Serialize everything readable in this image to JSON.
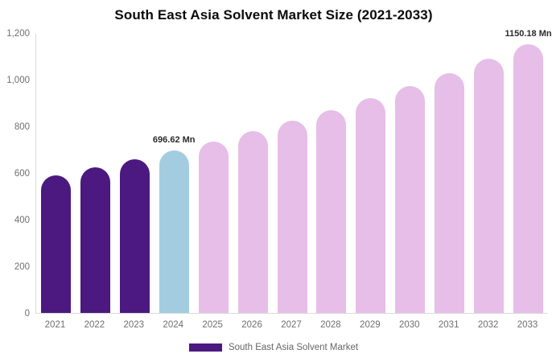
{
  "chart_data": {
    "type": "bar",
    "title": "South East Asia Solvent Market Size (2021-2033)",
    "categories": [
      "2021",
      "2022",
      "2023",
      "2024",
      "2025",
      "2026",
      "2027",
      "2028",
      "2029",
      "2030",
      "2031",
      "2032",
      "2033"
    ],
    "values": [
      589,
      623,
      659,
      696.62,
      736,
      779,
      823,
      870,
      920,
      973,
      1029,
      1088,
      1150.18
    ],
    "value_unit": "Mn",
    "bar_roles": [
      "historical",
      "historical",
      "historical",
      "current",
      "forecast",
      "forecast",
      "forecast",
      "forecast",
      "forecast",
      "forecast",
      "forecast",
      "forecast",
      "forecast"
    ],
    "colors": {
      "historical": "#4B1980",
      "current": "#A4CCE1",
      "forecast": "#E6BEE8"
    },
    "data_labels": [
      {
        "index": 3,
        "text": "696.62 Mn"
      },
      {
        "index": 12,
        "text": "1150.18 Mn"
      }
    ],
    "y_axis": {
      "min": 0,
      "max": 1200,
      "ticks": [
        {
          "value": 0,
          "label": "0"
        },
        {
          "value": 200,
          "label": "200"
        },
        {
          "value": 400,
          "label": "400"
        },
        {
          "value": 600,
          "label": "600"
        },
        {
          "value": 800,
          "label": "800"
        },
        {
          "value": 1000,
          "label": "1,000"
        },
        {
          "value": 1200,
          "label": "1,200"
        }
      ]
    },
    "grid": false,
    "legend_position": "bottom",
    "legend": {
      "items": [
        {
          "label": "South East Asia Solvent Market",
          "color": "#4B1980"
        }
      ]
    },
    "style": {
      "axis_line_color": "#d9d9d9",
      "tick_label_color": "#6f6f6f",
      "data_label_color": "#2b2b2b",
      "background": "#ffffff"
    }
  }
}
